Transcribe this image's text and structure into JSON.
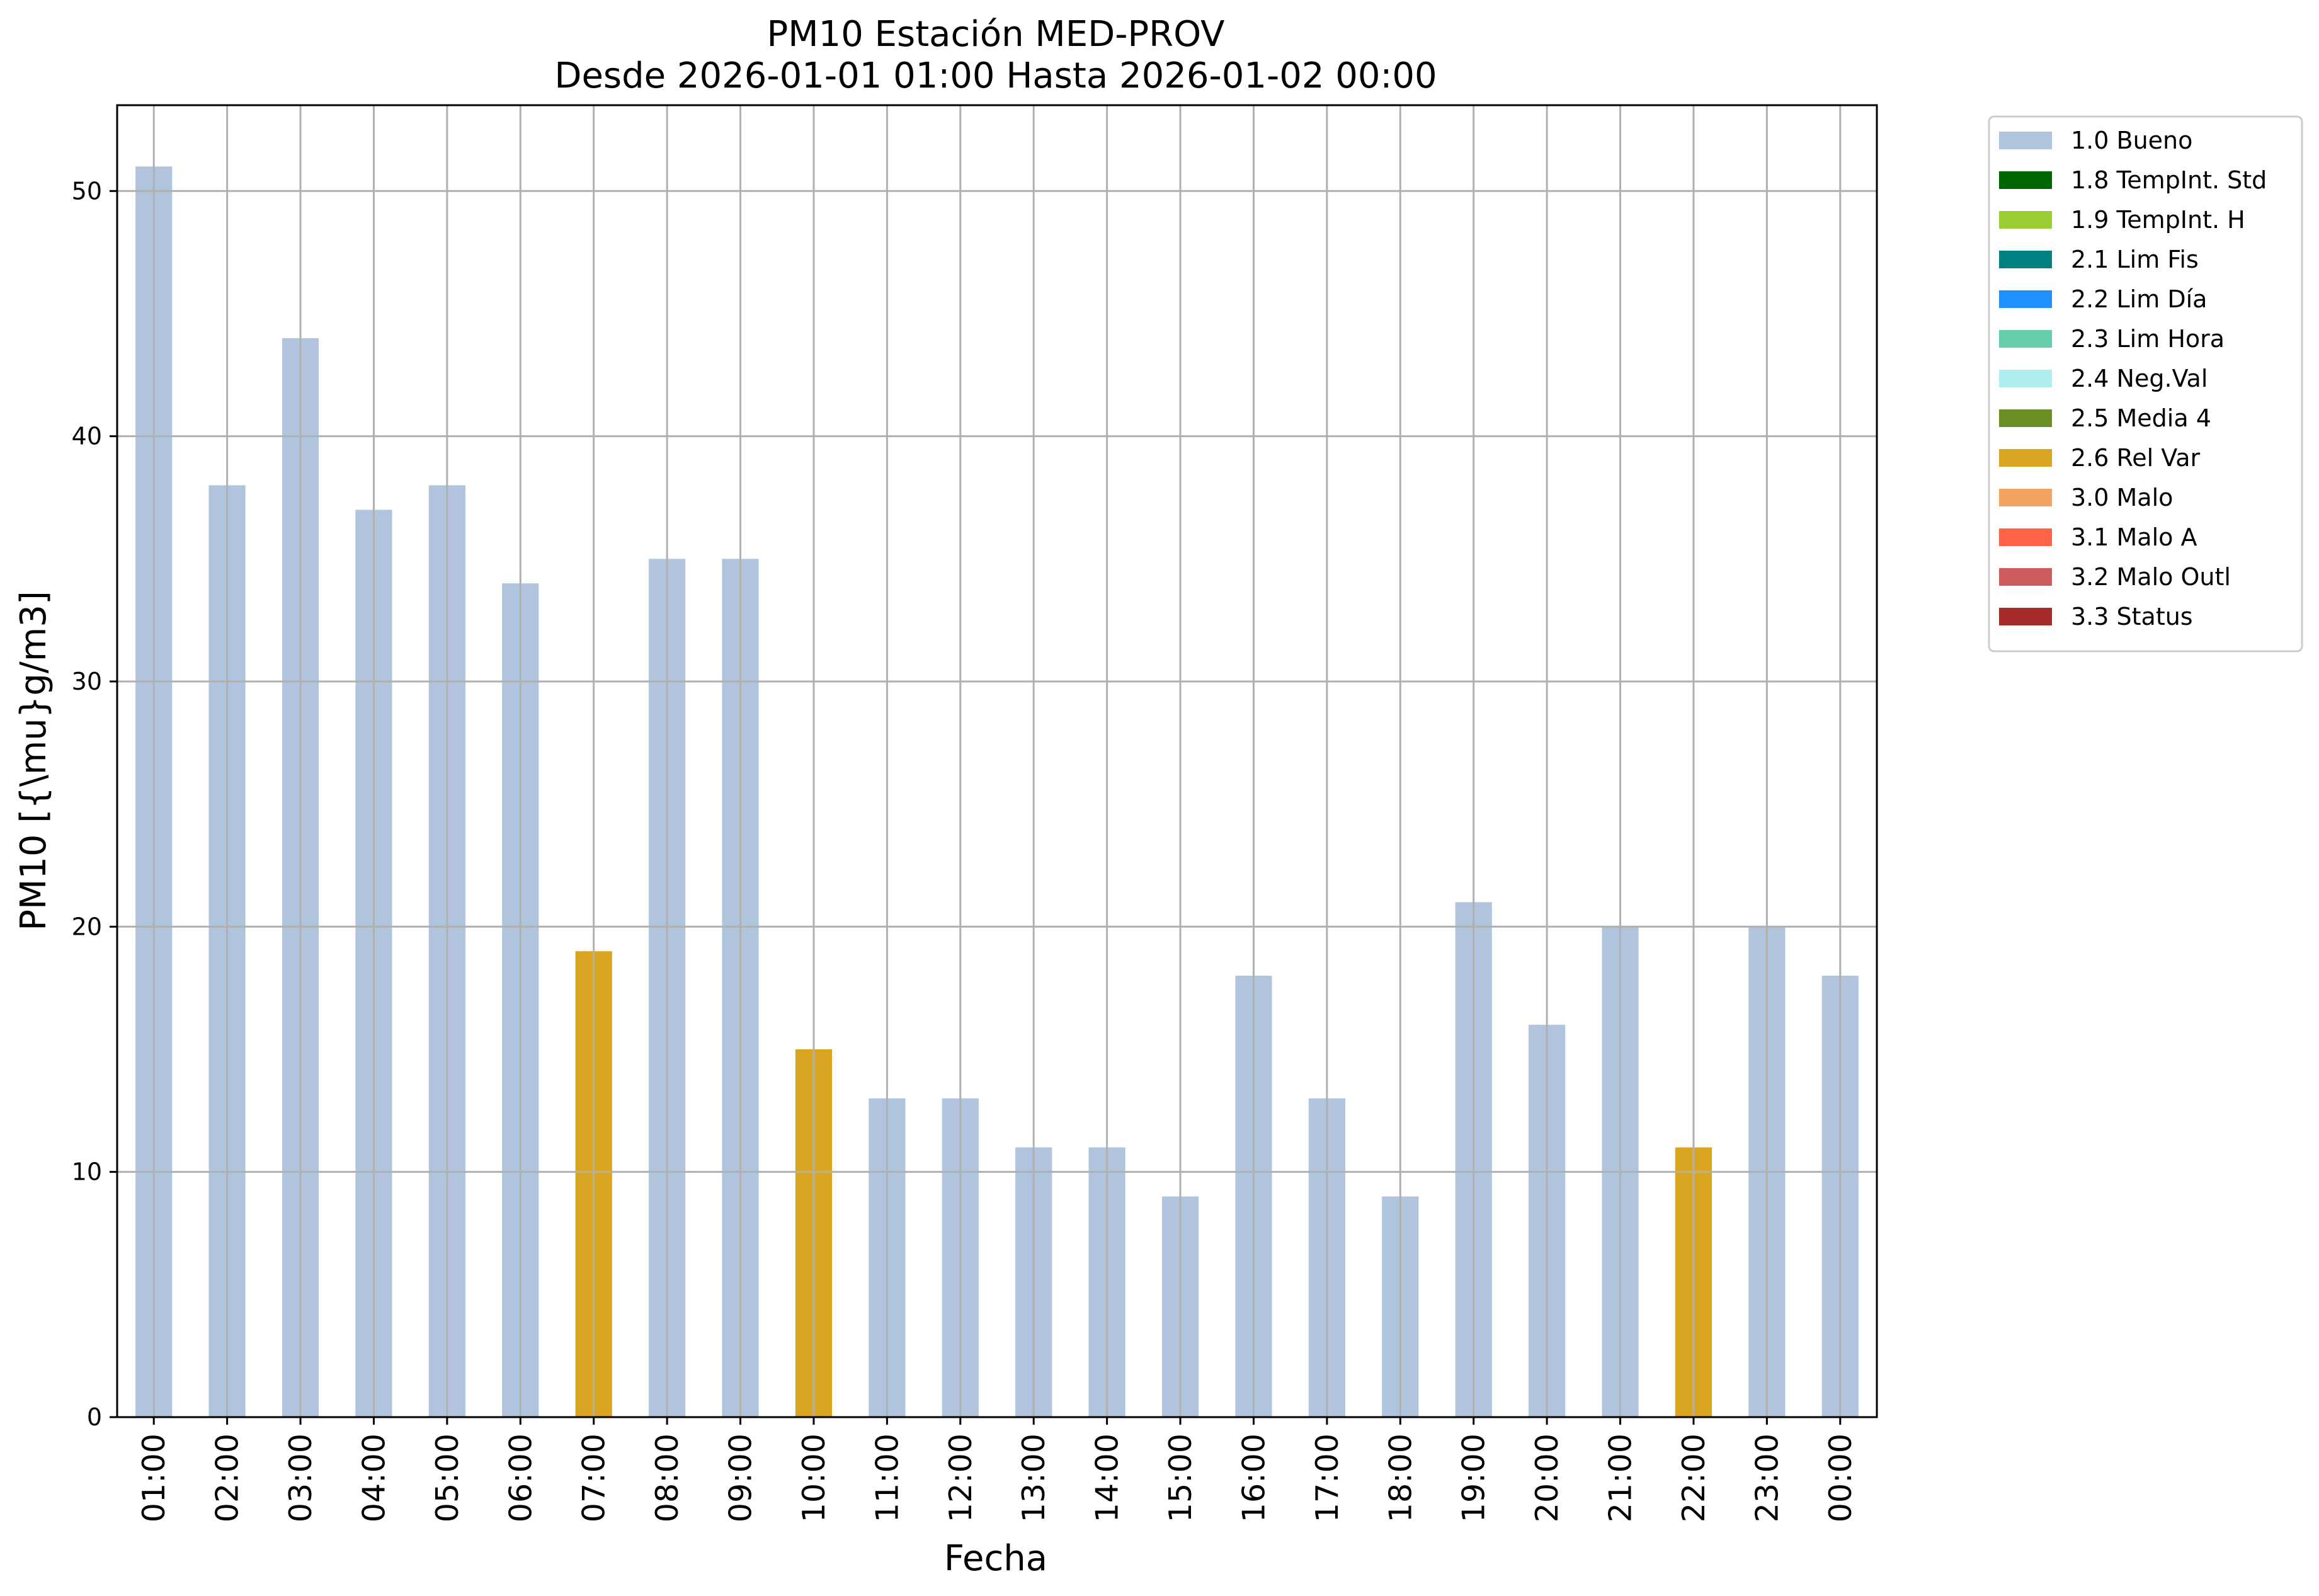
{
  "chart_data": {
    "type": "bar",
    "title": "PM10 Estación MED-PROV",
    "subtitle": "Desde 2026-01-01 01:00 Hasta 2026-01-02 00:00",
    "xlabel": "Fecha",
    "ylabel": "PM10 [{\\mu}g/m3]",
    "ylim": [
      0,
      53.5
    ],
    "yticks": [
      0,
      10,
      20,
      30,
      40,
      50
    ],
    "grid": true,
    "legend_position": "outside-top-right",
    "categories": [
      "01:00",
      "02:00",
      "03:00",
      "04:00",
      "05:00",
      "06:00",
      "07:00",
      "08:00",
      "09:00",
      "10:00",
      "11:00",
      "12:00",
      "13:00",
      "14:00",
      "15:00",
      "16:00",
      "17:00",
      "18:00",
      "19:00",
      "20:00",
      "21:00",
      "22:00",
      "23:00",
      "00:00"
    ],
    "values": [
      51,
      38,
      44,
      37,
      38,
      34,
      19,
      35,
      35,
      15,
      13,
      13,
      11,
      11,
      9,
      18,
      13,
      9,
      21,
      16,
      20,
      11,
      20,
      18
    ],
    "flags": [
      "1.0 Bueno",
      "1.0 Bueno",
      "1.0 Bueno",
      "1.0 Bueno",
      "1.0 Bueno",
      "1.0 Bueno",
      "2.6 Rel Var",
      "1.0 Bueno",
      "1.0 Bueno",
      "2.6 Rel Var",
      "1.0 Bueno",
      "1.0 Bueno",
      "1.0 Bueno",
      "1.0 Bueno",
      "1.0 Bueno",
      "1.0 Bueno",
      "1.0 Bueno",
      "1.0 Bueno",
      "1.0 Bueno",
      "1.0 Bueno",
      "1.0 Bueno",
      "2.6 Rel Var",
      "1.0 Bueno",
      "1.0 Bueno"
    ],
    "legend": [
      {
        "label": "1.0 Bueno",
        "color": "#b0c4de"
      },
      {
        "label": "1.8 TempInt. Std",
        "color": "#006400"
      },
      {
        "label": "1.9 TempInt. H",
        "color": "#9acd32"
      },
      {
        "label": "2.1 Lim Fis",
        "color": "#008080"
      },
      {
        "label": "2.2 Lim Día",
        "color": "#1e90ff"
      },
      {
        "label": "2.3 Lim Hora",
        "color": "#66cdaa"
      },
      {
        "label": "2.4 Neg.Val",
        "color": "#afeeee"
      },
      {
        "label": "2.5 Media 4",
        "color": "#6b8e23"
      },
      {
        "label": "2.6 Rel Var",
        "color": "#daa520"
      },
      {
        "label": "3.0 Malo",
        "color": "#f4a460"
      },
      {
        "label": "3.1 Malo A",
        "color": "#ff6347"
      },
      {
        "label": "3.2 Malo Outl",
        "color": "#cd5c5c"
      },
      {
        "label": "3.3 Status",
        "color": "#a52a2a"
      }
    ]
  }
}
